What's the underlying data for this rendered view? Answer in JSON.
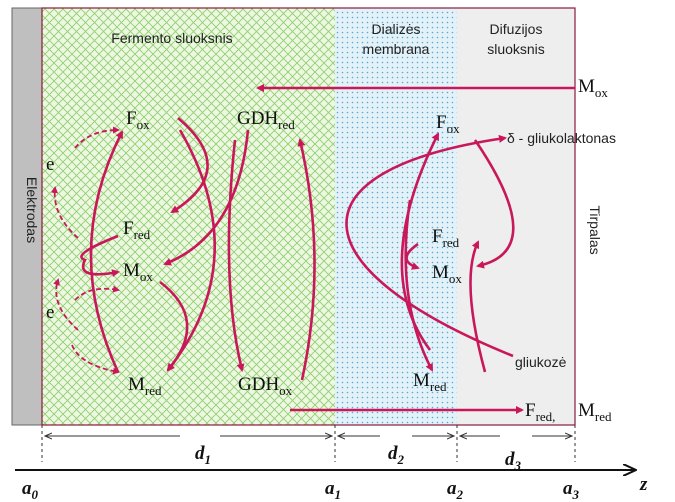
{
  "regions": {
    "electrode": "Elektrodas",
    "enzyme": "Fermento sluoksnis",
    "membrane": [
      "Dializės",
      "membrana"
    ],
    "diffusion": [
      "Difuzijos",
      "sluoksnis"
    ],
    "solution": "Tirpalas"
  },
  "species": [
    {
      "base": "M",
      "sub": "ox"
    },
    {
      "base": "F",
      "sub": "ox"
    },
    {
      "base": "GDH",
      "sub": "red"
    },
    {
      "base": "F",
      "sub": "ox"
    },
    {
      "base": "F",
      "sub": "red"
    },
    {
      "base": "F",
      "sub": "red"
    },
    {
      "base": "M",
      "sub": "ox"
    },
    {
      "base": "M",
      "sub": "ox"
    },
    {
      "base": "M",
      "sub": "red"
    },
    {
      "base": "GDH",
      "sub": "ox"
    },
    {
      "base": "M",
      "sub": "red"
    },
    {
      "base": "F",
      "sub": "red,"
    },
    {
      "base": "M",
      "sub": "red"
    }
  ],
  "electrons": [
    "e",
    "e"
  ],
  "products": [
    "δ - gliukolaktonas",
    "gliukozė"
  ],
  "thicknesses": [
    {
      "base": "d",
      "sub": "1"
    },
    {
      "base": "d",
      "sub": "2"
    },
    {
      "base": "d",
      "sub": "3"
    }
  ],
  "boundaries": [
    {
      "base": "a",
      "sub": "0"
    },
    {
      "base": "a",
      "sub": "1"
    },
    {
      "base": "a",
      "sub": "2"
    },
    {
      "base": "a",
      "sub": "3"
    }
  ],
  "axis": "z"
}
